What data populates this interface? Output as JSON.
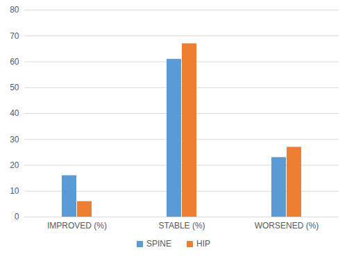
{
  "chart_data": {
    "type": "bar",
    "categories": [
      "IMPROVED (%)",
      "STABLE (%)",
      "WORSENED (%)"
    ],
    "series": [
      {
        "name": "SPINE",
        "color": "#5b9bd5",
        "values": [
          16,
          61,
          23
        ]
      },
      {
        "name": "HIP",
        "color": "#ed7d31",
        "values": [
          6,
          67,
          27
        ]
      }
    ],
    "ylim": [
      0,
      80
    ],
    "yticks": [
      0,
      10,
      20,
      30,
      40,
      50,
      60,
      70,
      80
    ],
    "grid": true,
    "legend": "bottom"
  }
}
